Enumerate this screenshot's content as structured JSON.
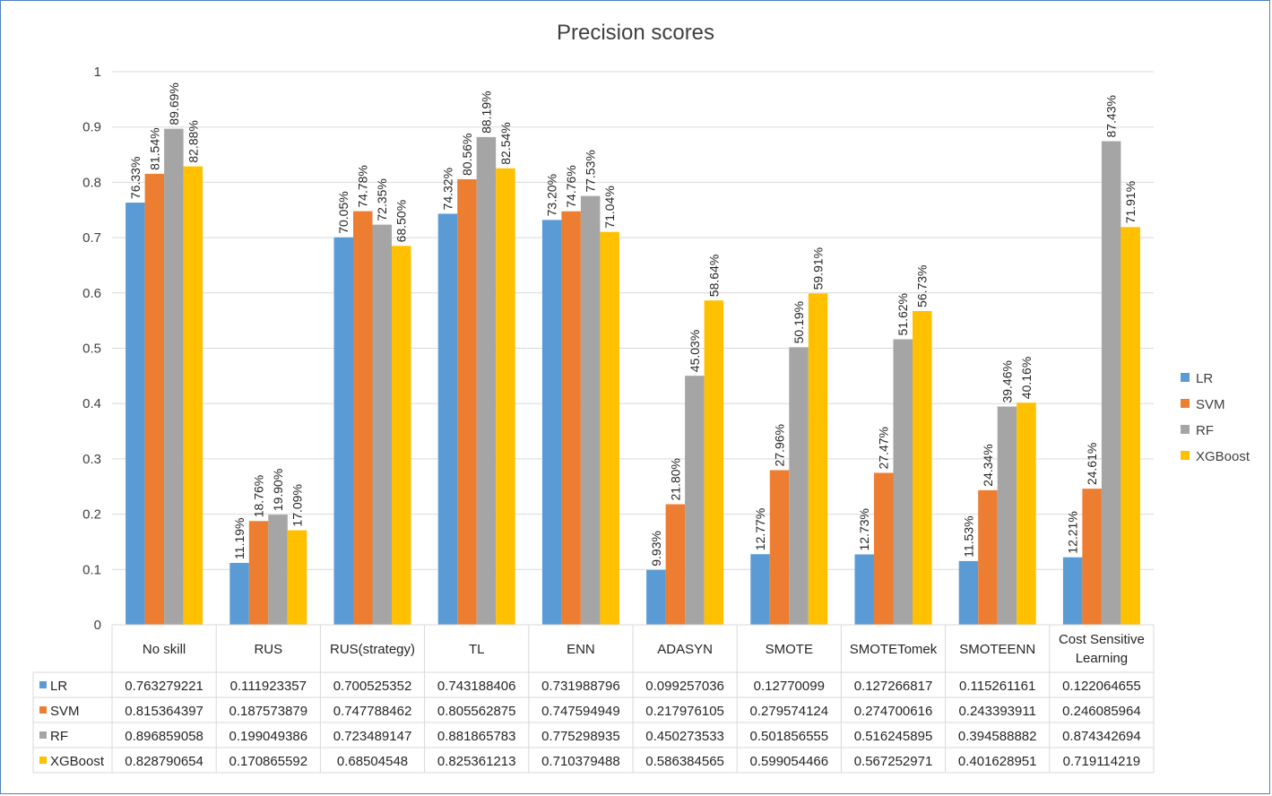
{
  "colors": {
    "LR": "#5b9bd5",
    "SVM": "#ed7d31",
    "RF": "#a5a5a5",
    "XGBoost": "#ffc000",
    "grid": "#d9d9d9",
    "frame": "#4f81bd"
  },
  "chart_data": {
    "type": "bar",
    "title": "Precision scores",
    "xlabel": "",
    "ylabel": "",
    "ylim": [
      0,
      1
    ],
    "yticks": [
      "0",
      "0.1",
      "0.2",
      "0.3",
      "0.4",
      "0.5",
      "0.6",
      "0.7",
      "0.8",
      "0.9",
      "1"
    ],
    "grid": true,
    "legend_position": "right",
    "categories": [
      "No skill",
      "RUS",
      "RUS(strategy)",
      "TL",
      "ENN",
      "ADASYN",
      "SMOTE",
      "SMOTETomek",
      "SMOTEENN",
      "Cost Sensitive Learning"
    ],
    "series": [
      {
        "name": "LR",
        "values": [
          0.763279221,
          0.111923357,
          0.700525352,
          0.743188406,
          0.731988796,
          0.099257036,
          0.12770099,
          0.127266817,
          0.115261161,
          0.122064655
        ],
        "table_values": [
          "0.763279221",
          "0.111923357",
          "0.700525352",
          "0.743188406",
          "0.731988796",
          "0.099257036",
          "0.12770099",
          "0.127266817",
          "0.115261161",
          "0.122064655"
        ],
        "labels": [
          "76.33%",
          "11.19%",
          "70.05%",
          "74.32%",
          "73.20%",
          "9.93%",
          "12.77%",
          "12.73%",
          "11.53%",
          "12.21%"
        ]
      },
      {
        "name": "SVM",
        "values": [
          0.815364397,
          0.187573879,
          0.747788462,
          0.805562875,
          0.747594949,
          0.217976105,
          0.279574124,
          0.274700616,
          0.243393911,
          0.246085964
        ],
        "table_values": [
          "0.815364397",
          "0.187573879",
          "0.747788462",
          "0.805562875",
          "0.747594949",
          "0.217976105",
          "0.279574124",
          "0.274700616",
          "0.243393911",
          "0.246085964"
        ],
        "labels": [
          "81.54%",
          "18.76%",
          "74.78%",
          "80.56%",
          "74.76%",
          "21.80%",
          "27.96%",
          "27.47%",
          "24.34%",
          "24.61%"
        ]
      },
      {
        "name": "RF",
        "values": [
          0.896859058,
          0.199049386,
          0.723489147,
          0.881865783,
          0.775298935,
          0.450273533,
          0.501856555,
          0.516245895,
          0.394588882,
          0.874342694
        ],
        "table_values": [
          "0.896859058",
          "0.199049386",
          "0.723489147",
          "0.881865783",
          "0.775298935",
          "0.450273533",
          "0.501856555",
          "0.516245895",
          "0.394588882",
          "0.874342694"
        ],
        "labels": [
          "89.69%",
          "19.90%",
          "72.35%",
          "88.19%",
          "77.53%",
          "45.03%",
          "50.19%",
          "51.62%",
          "39.46%",
          "87.43%"
        ]
      },
      {
        "name": "XGBoost",
        "values": [
          0.828790654,
          0.170865592,
          0.68504548,
          0.825361213,
          0.710379488,
          0.586384565,
          0.599054466,
          0.567252971,
          0.401628951,
          0.719114219
        ],
        "table_values": [
          "0.828790654",
          "0.170865592",
          "0.68504548",
          "0.825361213",
          "0.710379488",
          "0.586384565",
          "0.599054466",
          "0.567252971",
          "0.401628951",
          "0.719114219"
        ],
        "labels": [
          "82.88%",
          "17.09%",
          "68.50%",
          "82.54%",
          "71.04%",
          "58.64%",
          "59.91%",
          "56.73%",
          "40.16%",
          "71.91%"
        ]
      }
    ]
  }
}
